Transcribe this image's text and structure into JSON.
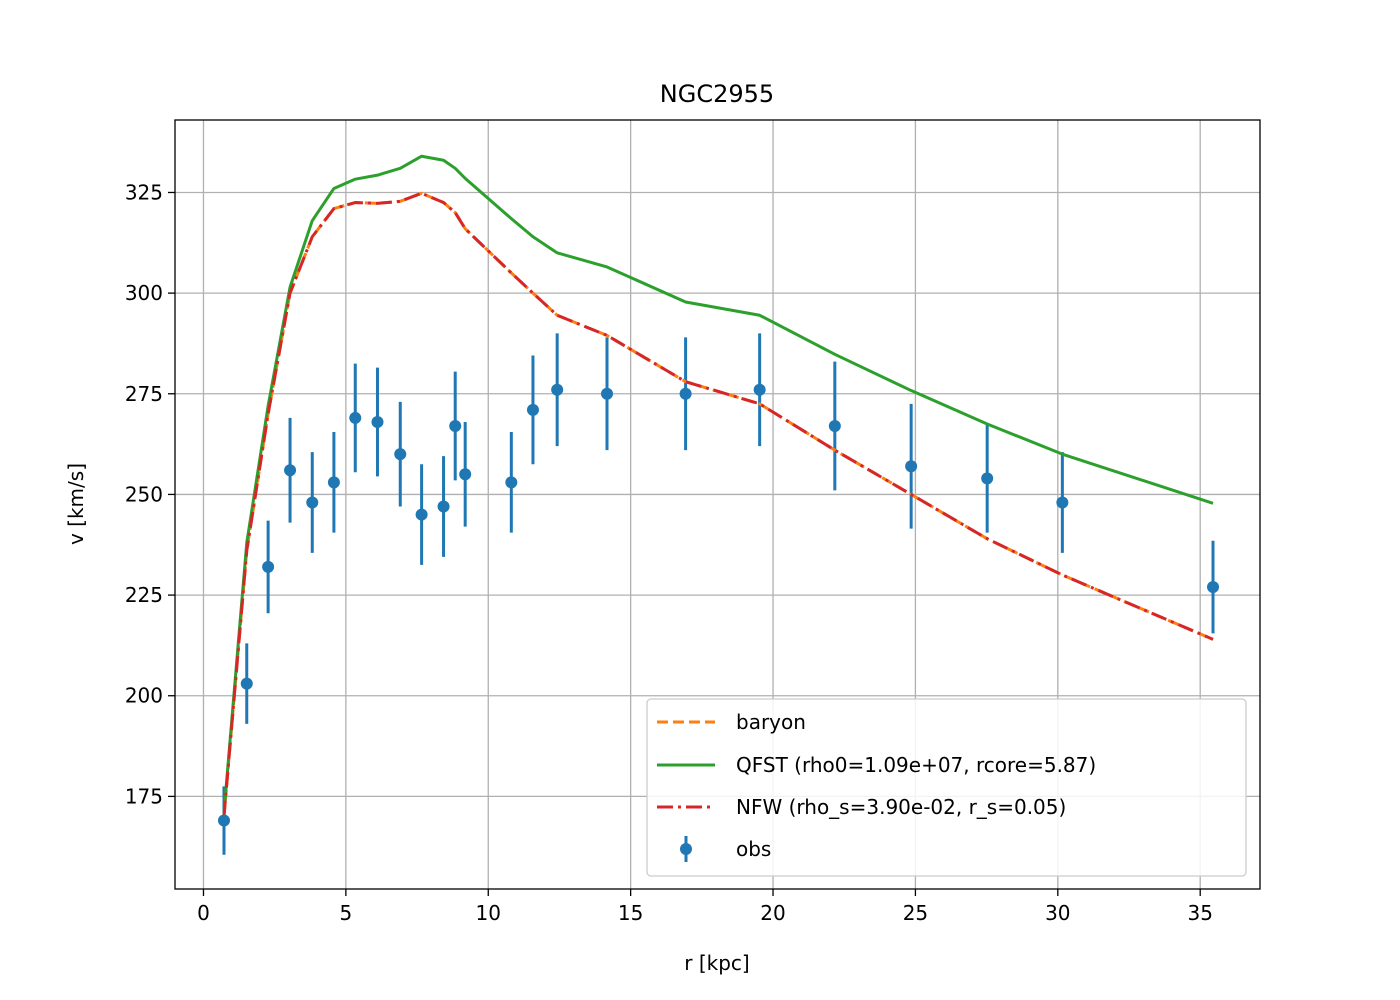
{
  "chart_data": {
    "type": "line",
    "title": "NGC2955",
    "xlabel": "r [kpc]",
    "ylabel": "v [km/s]",
    "xlim": [
      -1.0,
      37.1
    ],
    "ylim": [
      152,
      343
    ],
    "xticks": [
      0,
      5,
      10,
      15,
      20,
      25,
      30,
      35
    ],
    "yticks": [
      175,
      200,
      225,
      250,
      275,
      300,
      325
    ],
    "grid": true,
    "legend_position": "lower-right",
    "colors": {
      "baryon": "#ff7f0e",
      "qfst": "#2ca02c",
      "nfw": "#d62728",
      "obs": "#1f77b4"
    },
    "x": [
      0.72,
      1.52,
      2.27,
      3.04,
      3.82,
      4.58,
      5.33,
      6.11,
      6.91,
      7.66,
      8.43,
      8.84,
      9.19,
      10.81,
      11.57,
      12.42,
      14.17,
      16.93,
      19.53,
      22.17,
      24.85,
      27.52,
      30.16,
      35.45
    ],
    "series": [
      {
        "name": "baryon",
        "style": "dashed",
        "values": [
          170,
          236,
          270,
          300,
          314,
          321,
          322.5,
          322.3,
          322.8,
          324.8,
          322.5,
          320,
          316,
          305,
          300,
          294.5,
          289.5,
          278,
          272.5,
          261,
          250,
          239,
          230,
          214
        ]
      },
      {
        "name": "QFST (rho0=1.09e+07, rcore=5.87)",
        "style": "solid",
        "values": [
          171,
          238,
          272,
          301.5,
          318,
          326,
          328.3,
          329.3,
          331,
          334,
          333,
          331,
          328.5,
          318.5,
          314,
          310,
          306.5,
          297.8,
          294.5,
          284.8,
          275.8,
          267.5,
          260,
          247.8
        ]
      },
      {
        "name": "NFW (rho_s=3.90e-02, r_s=0.05)",
        "style": "dashdot",
        "values": [
          170,
          236,
          270,
          300,
          314,
          321,
          322.5,
          322.3,
          322.8,
          324.8,
          322.5,
          320,
          316,
          305,
          300,
          294.5,
          289.5,
          278,
          272.5,
          261,
          250,
          239,
          230,
          214
        ]
      }
    ],
    "obs": {
      "name": "obs",
      "values": [
        169,
        203,
        232,
        256,
        248,
        253,
        269,
        268,
        260,
        245,
        247,
        267,
        255,
        253,
        271,
        276,
        275,
        275,
        276,
        267,
        257,
        254,
        248,
        227
      ],
      "errors": [
        8.5,
        10,
        11.5,
        13,
        12.5,
        12.5,
        13.5,
        13.5,
        13,
        12.5,
        12.5,
        13.5,
        13,
        12.5,
        13.5,
        14,
        14,
        14,
        14,
        16,
        15.5,
        13.5,
        12.5,
        11.5
      ]
    }
  }
}
